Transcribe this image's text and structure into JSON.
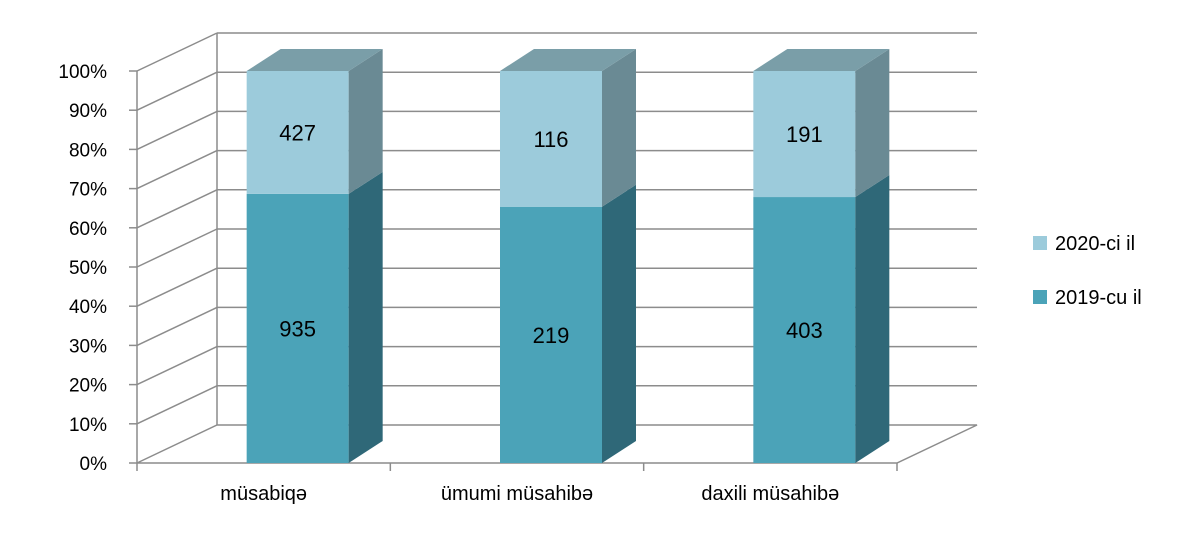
{
  "chart_data": {
    "type": "bar",
    "stacked": "percent",
    "three_d": true,
    "categories": [
      "müsabiqə",
      "ümumi müsahibə",
      "daxili müsahibə"
    ],
    "series": [
      {
        "name": "2019-cu il",
        "values": [
          935,
          219,
          403
        ],
        "color": "#4ba3b8",
        "side_color": "#2f6878",
        "top_color": "#5e93a0"
      },
      {
        "name": "2020-ci il",
        "values": [
          427,
          116,
          191
        ],
        "color": "#9ccbdb",
        "side_color": "#6a8a94",
        "top_color": "#7a9ea8"
      }
    ],
    "y_ticks": [
      "0%",
      "10%",
      "20%",
      "30%",
      "40%",
      "50%",
      "60%",
      "70%",
      "80%",
      "90%",
      "100%"
    ],
    "ylim": [
      0,
      100
    ],
    "grid": true,
    "legend_position": "right"
  }
}
